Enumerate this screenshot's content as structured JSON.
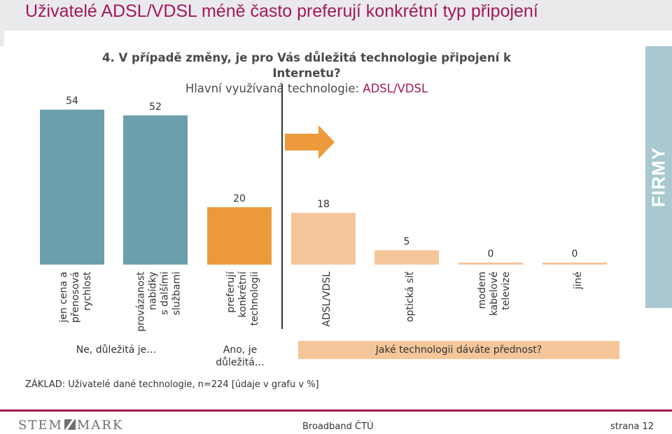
{
  "page": {
    "title": "Uživatelé ADSL/VDSL méně často preferují konkrétní typ připojení",
    "question_line1": "4. V případě změny, je pro Vás důležitá technologie připojení k Internetu?",
    "question_line2_prefix": "Hlavní využívaná technologie: ",
    "question_line2_accent": "ADSL/VDSL",
    "side_label": "FIRMY",
    "group_no": "Ne, důležitá je…",
    "group_yes": "Ano, je důležitá…",
    "group_which": "Jaké technologii dáváte přednost?",
    "base_note": "ZÁKLAD: Uživatelé dané technologie, n=224 [údaje v grafu v %]",
    "footer_logo_left": "STEM",
    "footer_logo_right": "MARK",
    "footer_center": "Broadband ČTÚ",
    "footer_page": "strana 12"
  },
  "colors": {
    "accent": "#a3185b",
    "teal": "#6c9fab",
    "orange": "#ec9a3c",
    "light_orange": "#f4c699",
    "side_panel": "#a9c8cf"
  },
  "chart_data": {
    "type": "bar",
    "categories": [
      [
        "jen cena a",
        "přenosová",
        "rychlost"
      ],
      [
        "provázanost",
        "nabídky",
        "s dalšími",
        "službami"
      ],
      [
        "preferují",
        "konkrétní",
        "technologii"
      ],
      [
        "ADSL/VDSL"
      ],
      [
        "optická síť"
      ],
      [
        "modem",
        "kabelové",
        "televize"
      ],
      [
        "jiné"
      ]
    ],
    "values": [
      54,
      52,
      20,
      18,
      5,
      0,
      0
    ],
    "bar_colors": [
      "#6c9fab",
      "#6c9fab",
      "#ec9a3c",
      "#f4c699",
      "#f4c699",
      "#f4c699",
      "#f4c699"
    ],
    "title": "",
    "xlabel": "",
    "ylabel": "",
    "ylim": [
      0,
      60
    ],
    "grid": false
  }
}
